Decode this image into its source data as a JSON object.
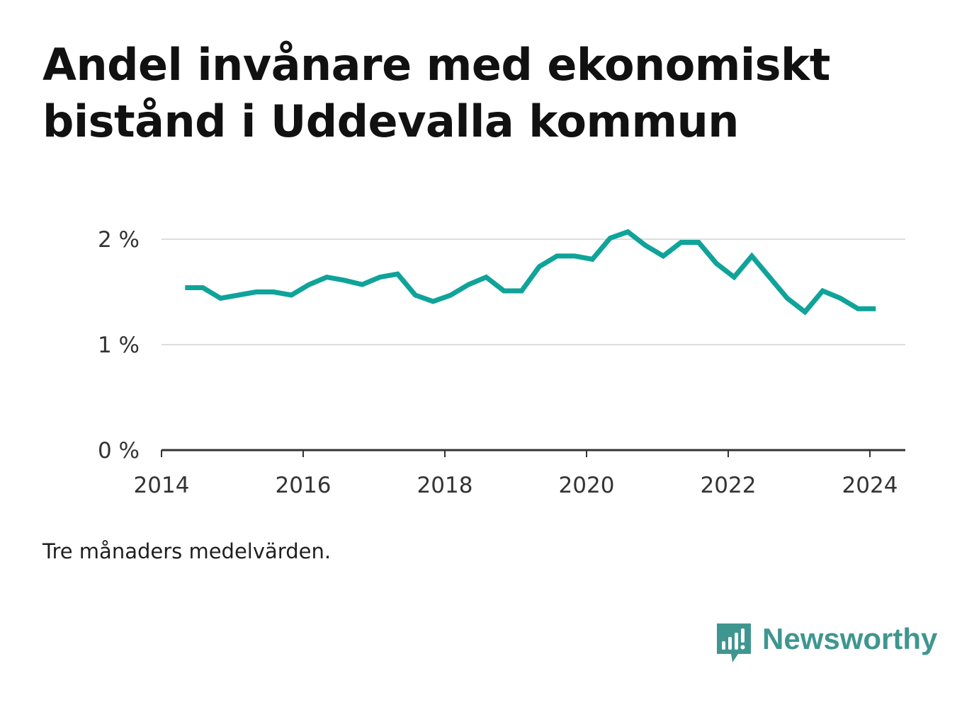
{
  "title": "Andel invånare med ekonomiskt bistånd i Uddevalla kommun",
  "note": "Tre månaders medelvärden.",
  "brand": {
    "name": "Newsworthy",
    "logo_icon": "newsworthy-bar-chart-bubble-icon",
    "color": "#3f9690"
  },
  "colors": {
    "line": "#0fa39a",
    "grid": "#dddddd",
    "axis": "#333333",
    "text": "#333333"
  },
  "chart_data": {
    "type": "line",
    "title": "Andel invånare med ekonomiskt bistånd i Uddevalla kommun",
    "xlabel": "",
    "ylabel": "",
    "x_ticks": [
      "2014",
      "2016",
      "2018",
      "2020",
      "2022",
      "2024"
    ],
    "y_ticks": [
      "0 %",
      "1 %",
      "2 %"
    ],
    "y_tick_values": [
      0,
      1,
      2
    ],
    "ylim": [
      0,
      2.05
    ],
    "xlim": [
      "2014-01-01",
      "2024-07-01"
    ],
    "grid": true,
    "series": [
      {
        "values": [
          {
            "x": "2014-05",
            "y": 1.54
          },
          {
            "x": "2014-08",
            "y": 1.54
          },
          {
            "x": "2014-11",
            "y": 1.44
          },
          {
            "x": "2015-02",
            "y": 1.47
          },
          {
            "x": "2015-05",
            "y": 1.5
          },
          {
            "x": "2015-08",
            "y": 1.5
          },
          {
            "x": "2015-11",
            "y": 1.47
          },
          {
            "x": "2016-02",
            "y": 1.57
          },
          {
            "x": "2016-05",
            "y": 1.64
          },
          {
            "x": "2016-08",
            "y": 1.61
          },
          {
            "x": "2016-11",
            "y": 1.57
          },
          {
            "x": "2017-02",
            "y": 1.64
          },
          {
            "x": "2017-05",
            "y": 1.67
          },
          {
            "x": "2017-08",
            "y": 1.47
          },
          {
            "x": "2017-11",
            "y": 1.41
          },
          {
            "x": "2018-02",
            "y": 1.47
          },
          {
            "x": "2018-05",
            "y": 1.57
          },
          {
            "x": "2018-08",
            "y": 1.64
          },
          {
            "x": "2018-11",
            "y": 1.51
          },
          {
            "x": "2019-02",
            "y": 1.51
          },
          {
            "x": "2019-05",
            "y": 1.74
          },
          {
            "x": "2019-08",
            "y": 1.84
          },
          {
            "x": "2019-11",
            "y": 1.84
          },
          {
            "x": "2020-02",
            "y": 1.81
          },
          {
            "x": "2020-05",
            "y": 2.01
          },
          {
            "x": "2020-08",
            "y": 2.07
          },
          {
            "x": "2020-11",
            "y": 1.94
          },
          {
            "x": "2021-02",
            "y": 1.84
          },
          {
            "x": "2021-05",
            "y": 1.97
          },
          {
            "x": "2021-08",
            "y": 1.97
          },
          {
            "x": "2021-11",
            "y": 1.77
          },
          {
            "x": "2022-02",
            "y": 1.64
          },
          {
            "x": "2022-05",
            "y": 1.84
          },
          {
            "x": "2022-08",
            "y": 1.64
          },
          {
            "x": "2022-11",
            "y": 1.44
          },
          {
            "x": "2023-02",
            "y": 1.31
          },
          {
            "x": "2023-05",
            "y": 1.51
          },
          {
            "x": "2023-08",
            "y": 1.44
          },
          {
            "x": "2023-11",
            "y": 1.34
          },
          {
            "x": "2024-02",
            "y": 1.34
          }
        ]
      }
    ]
  }
}
